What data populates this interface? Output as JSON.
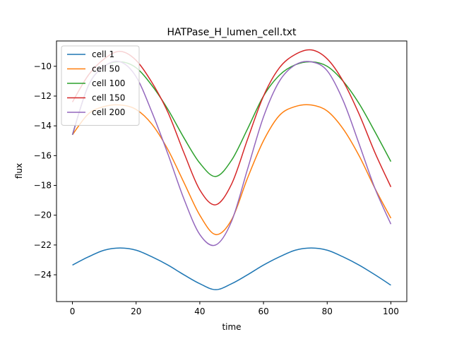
{
  "chart_data": {
    "type": "line",
    "title": "HATPase_H_lumen_cell.txt",
    "xlabel": "time",
    "ylabel": "flux",
    "xlim": [
      -5,
      105
    ],
    "ylim": [
      -25.8,
      -8.3
    ],
    "xticks": [
      0,
      20,
      40,
      60,
      80,
      100
    ],
    "xtick_labels": [
      "0",
      "20",
      "40",
      "60",
      "80",
      "100"
    ],
    "yticks": [
      -24,
      -22,
      -20,
      -18,
      -16,
      -14,
      -12,
      -10
    ],
    "ytick_labels": [
      "−24",
      "−22",
      "−20",
      "−18",
      "−16",
      "−14",
      "−12",
      "−10"
    ],
    "grid": false,
    "legend_position": "upper-left",
    "x": [
      0,
      5,
      10,
      15,
      20,
      25,
      30,
      35,
      40,
      45,
      50,
      55,
      60,
      65,
      70,
      75,
      80,
      85,
      90,
      95,
      100
    ],
    "series": [
      {
        "name": "cell 1",
        "color": "#1f77b4",
        "values": [
          -23.35,
          -22.8,
          -22.35,
          -22.2,
          -22.35,
          -22.8,
          -23.35,
          -24.0,
          -24.6,
          -25.0,
          -24.6,
          -24.0,
          -23.35,
          -22.8,
          -22.35,
          -22.2,
          -22.35,
          -22.8,
          -23.35,
          -24.0,
          -24.7
        ]
      },
      {
        "name": "cell 50",
        "color": "#ff7f0e",
        "values": [
          -14.6,
          -13.2,
          -12.7,
          -12.6,
          -12.9,
          -13.9,
          -15.6,
          -17.8,
          -20.0,
          -21.3,
          -20.3,
          -17.5,
          -15.0,
          -13.3,
          -12.7,
          -12.6,
          -13.0,
          -14.2,
          -16.0,
          -18.2,
          -20.2
        ]
      },
      {
        "name": "cell 100",
        "color": "#2ca02c",
        "values": [
          -14.6,
          -11.3,
          -10.0,
          -9.7,
          -10.1,
          -11.3,
          -12.9,
          -14.8,
          -16.5,
          -17.4,
          -16.3,
          -14.2,
          -12.0,
          -10.6,
          -9.9,
          -9.7,
          -10.0,
          -11.0,
          -12.5,
          -14.4,
          -16.4
        ]
      },
      {
        "name": "cell 150",
        "color": "#d62728",
        "values": [
          -12.4,
          -10.6,
          -9.5,
          -9.0,
          -9.6,
          -11.1,
          -13.1,
          -15.8,
          -18.3,
          -19.3,
          -17.9,
          -14.9,
          -12.0,
          -10.1,
          -9.2,
          -8.9,
          -9.5,
          -11.0,
          -13.2,
          -15.8,
          -18.1
        ]
      },
      {
        "name": "cell 200",
        "color": "#9467bd",
        "values": [
          -14.6,
          -11.3,
          -10.0,
          -9.7,
          -10.7,
          -13.1,
          -15.9,
          -18.9,
          -21.3,
          -22.0,
          -20.4,
          -16.9,
          -13.4,
          -11.0,
          -9.9,
          -9.7,
          -10.3,
          -12.3,
          -15.2,
          -18.2,
          -20.6
        ]
      }
    ]
  }
}
